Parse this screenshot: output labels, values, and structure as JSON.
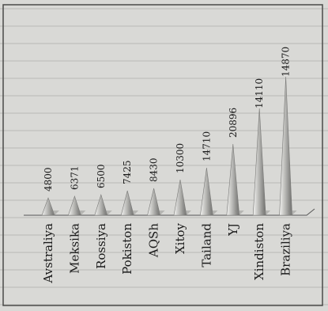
{
  "chart_data": {
    "type": "bar",
    "orientation": "vertical",
    "title": "",
    "xlabel": "",
    "ylabel": "",
    "categories": [
      "Avstraliya",
      "Meksika",
      "Rossiya",
      "Pokiston",
      "AQSh",
      "Xitoy",
      "Tailand",
      "YJ",
      "Xindiston",
      "Braziliya"
    ],
    "values": [
      4800,
      6371,
      6500,
      7425,
      8430,
      10300,
      14710,
      20896,
      14110,
      14870
    ],
    "value_labels": [
      "4800",
      "6371",
      "6500",
      "7425",
      "8430",
      "10300",
      "14710",
      "20896",
      "14110",
      "14870"
    ],
    "mark_shape": "cone",
    "colors": {
      "background": "#d9d9d6",
      "cone_light": "#f2f2f0",
      "cone_dark": "#6e6e6c",
      "text": "#1a1a1a"
    }
  }
}
